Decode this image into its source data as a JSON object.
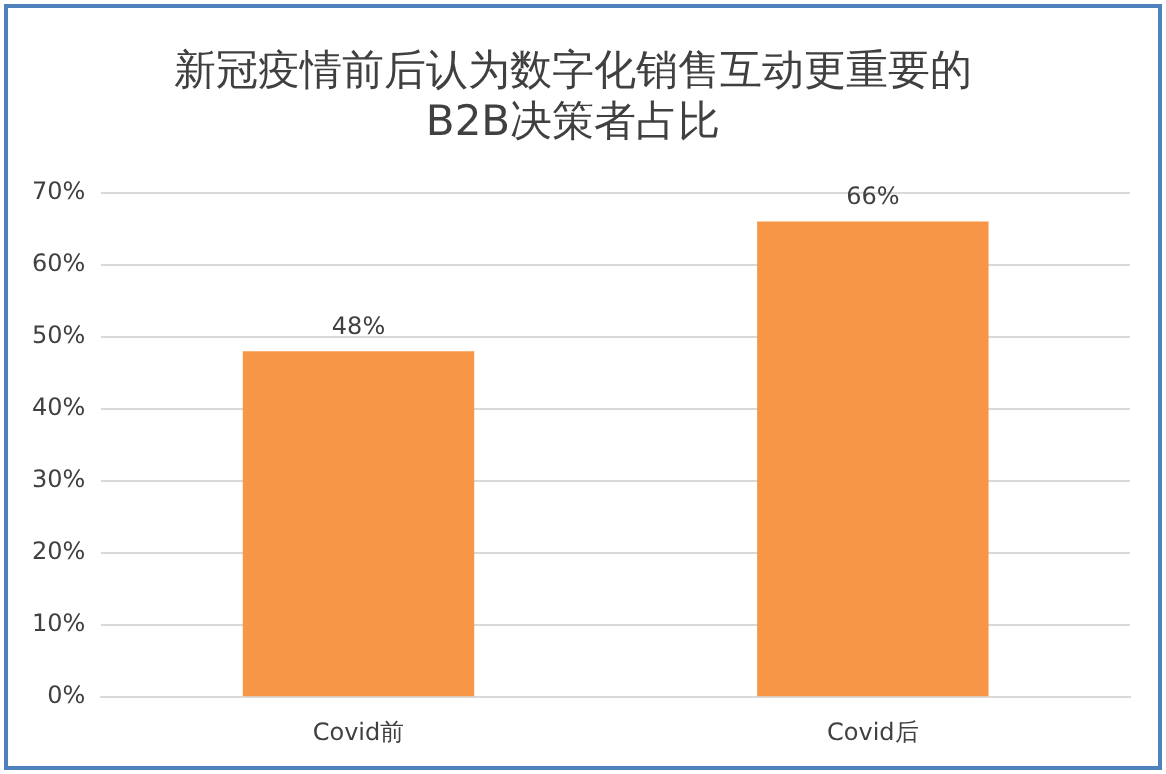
{
  "chart_data": {
    "type": "bar",
    "title": "新冠疫情前后认为数字化销售互动更重要的\nB2B决策者占比",
    "categories": [
      "Covid前",
      "Covid后"
    ],
    "values": [
      48,
      66
    ],
    "color": "#f79646",
    "value_labels": [
      "48%",
      "66%"
    ],
    "ylim": [
      0,
      70
    ],
    "yticks": [
      {
        "value": 0,
        "label": "0%"
      },
      {
        "value": 10,
        "label": "10%"
      },
      {
        "value": 20,
        "label": "20%"
      },
      {
        "value": 30,
        "label": "30%"
      },
      {
        "value": 40,
        "label": "40%"
      },
      {
        "value": 50,
        "label": "50%"
      },
      {
        "value": 60,
        "label": "60%"
      },
      {
        "value": 70,
        "label": "70%"
      }
    ],
    "grid": "y"
  }
}
